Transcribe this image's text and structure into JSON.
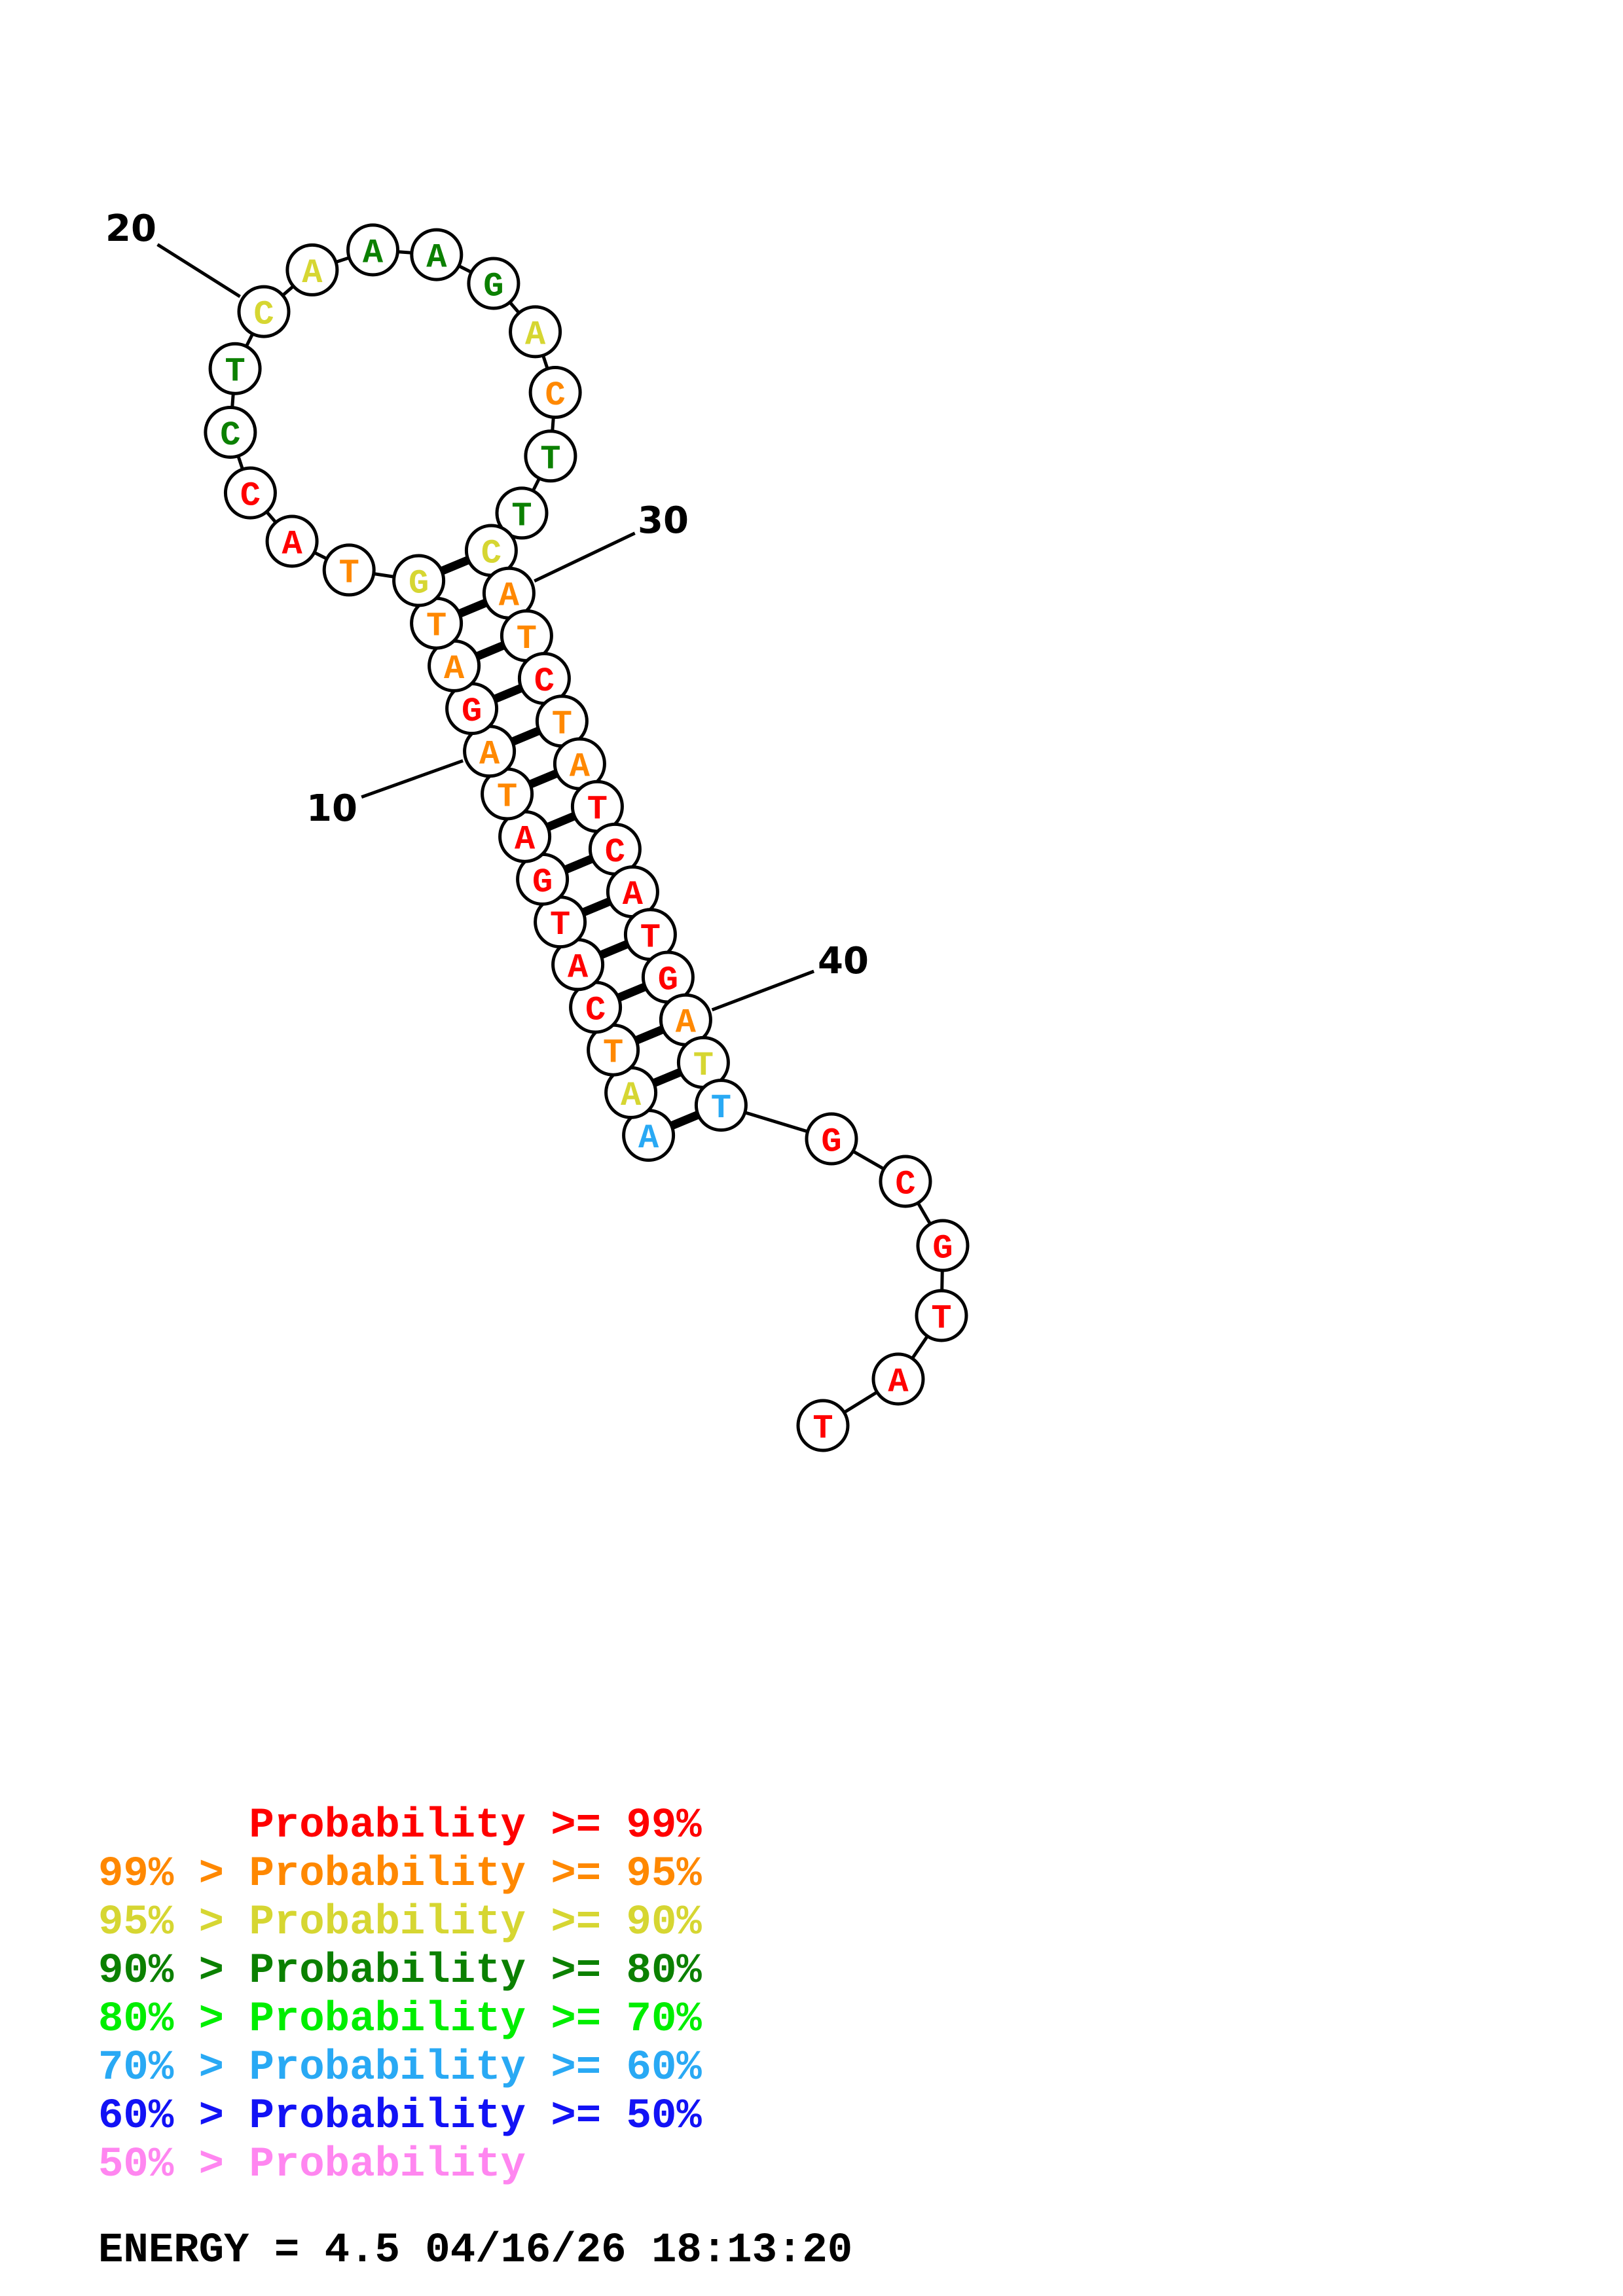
{
  "palette": {
    "red": "#ff0000",
    "orange": "#ff8800",
    "yellow": "#d6d632",
    "dark_green": "#0b8000",
    "bright_green": "#00ee00",
    "sky_blue": "#29a9f4",
    "blue": "#1212f5",
    "violet": "#ff86f0",
    "ink": "#000000"
  },
  "structure": {
    "sequence_string": "AATCATGATAGATGTACCTCAAAGACTTCATCTATCATGATTGCGTAT",
    "nucleotides": [
      {
        "i": 1,
        "base": "A",
        "prob": "sky_blue"
      },
      {
        "i": 2,
        "base": "A",
        "prob": "yellow"
      },
      {
        "i": 3,
        "base": "T",
        "prob": "orange"
      },
      {
        "i": 4,
        "base": "C",
        "prob": "red"
      },
      {
        "i": 5,
        "base": "A",
        "prob": "red"
      },
      {
        "i": 6,
        "base": "T",
        "prob": "red"
      },
      {
        "i": 7,
        "base": "G",
        "prob": "red"
      },
      {
        "i": 8,
        "base": "A",
        "prob": "red"
      },
      {
        "i": 9,
        "base": "T",
        "prob": "orange"
      },
      {
        "i": 10,
        "base": "A",
        "prob": "orange"
      },
      {
        "i": 11,
        "base": "G",
        "prob": "red"
      },
      {
        "i": 12,
        "base": "A",
        "prob": "orange"
      },
      {
        "i": 13,
        "base": "T",
        "prob": "orange"
      },
      {
        "i": 14,
        "base": "G",
        "prob": "yellow"
      },
      {
        "i": 15,
        "base": "T",
        "prob": "orange"
      },
      {
        "i": 16,
        "base": "A",
        "prob": "red"
      },
      {
        "i": 17,
        "base": "C",
        "prob": "red"
      },
      {
        "i": 18,
        "base": "C",
        "prob": "dark_green"
      },
      {
        "i": 19,
        "base": "T",
        "prob": "dark_green"
      },
      {
        "i": 20,
        "base": "C",
        "prob": "yellow"
      },
      {
        "i": 21,
        "base": "A",
        "prob": "yellow"
      },
      {
        "i": 22,
        "base": "A",
        "prob": "dark_green"
      },
      {
        "i": 23,
        "base": "A",
        "prob": "dark_green"
      },
      {
        "i": 24,
        "base": "G",
        "prob": "dark_green"
      },
      {
        "i": 25,
        "base": "A",
        "prob": "yellow"
      },
      {
        "i": 26,
        "base": "C",
        "prob": "orange"
      },
      {
        "i": 27,
        "base": "T",
        "prob": "dark_green"
      },
      {
        "i": 28,
        "base": "T",
        "prob": "dark_green"
      },
      {
        "i": 29,
        "base": "C",
        "prob": "yellow"
      },
      {
        "i": 30,
        "base": "A",
        "prob": "orange"
      },
      {
        "i": 31,
        "base": "T",
        "prob": "orange"
      },
      {
        "i": 32,
        "base": "C",
        "prob": "red"
      },
      {
        "i": 33,
        "base": "T",
        "prob": "orange"
      },
      {
        "i": 34,
        "base": "A",
        "prob": "orange"
      },
      {
        "i": 35,
        "base": "T",
        "prob": "red"
      },
      {
        "i": 36,
        "base": "C",
        "prob": "red"
      },
      {
        "i": 37,
        "base": "A",
        "prob": "red"
      },
      {
        "i": 38,
        "base": "T",
        "prob": "red"
      },
      {
        "i": 39,
        "base": "G",
        "prob": "red"
      },
      {
        "i": 40,
        "base": "A",
        "prob": "orange"
      },
      {
        "i": 41,
        "base": "T",
        "prob": "yellow"
      },
      {
        "i": 42,
        "base": "T",
        "prob": "sky_blue"
      },
      {
        "i": 43,
        "base": "G",
        "prob": "red"
      },
      {
        "i": 44,
        "base": "C",
        "prob": "red"
      },
      {
        "i": 45,
        "base": "G",
        "prob": "red"
      },
      {
        "i": 46,
        "base": "T",
        "prob": "red"
      },
      {
        "i": 47,
        "base": "A",
        "prob": "red"
      },
      {
        "i": 48,
        "base": "T",
        "prob": "red"
      }
    ],
    "pairs": [
      [
        1,
        42
      ],
      [
        2,
        41
      ],
      [
        3,
        40
      ],
      [
        4,
        39
      ],
      [
        5,
        38
      ],
      [
        6,
        37
      ],
      [
        7,
        36
      ],
      [
        8,
        35
      ],
      [
        9,
        34
      ],
      [
        10,
        33
      ],
      [
        11,
        32
      ],
      [
        12,
        31
      ],
      [
        13,
        30
      ],
      [
        14,
        29
      ]
    ],
    "position_labels": [
      {
        "text": "10",
        "nucleotide": 10
      },
      {
        "text": "20",
        "nucleotide": 20
      },
      {
        "text": "30",
        "nucleotide": 30
      },
      {
        "text": "40",
        "nucleotide": 40
      }
    ]
  },
  "legend": {
    "rows": [
      {
        "label": "Probability >= 99%",
        "color_key": "red",
        "indented": true
      },
      {
        "label": "99% > Probability >= 95%",
        "color_key": "orange",
        "indented": false
      },
      {
        "label": "95% > Probability >= 90%",
        "color_key": "yellow",
        "indented": false
      },
      {
        "label": "90% > Probability >= 80%",
        "color_key": "dark_green",
        "indented": false
      },
      {
        "label": "80% > Probability >= 70%",
        "color_key": "bright_green",
        "indented": false
      },
      {
        "label": "70% > Probability >= 60%",
        "color_key": "sky_blue",
        "indented": false
      },
      {
        "label": "60% > Probability >= 50%",
        "color_key": "blue",
        "indented": false
      },
      {
        "label": "50% > Probability",
        "color_key": "violet",
        "indented": false
      }
    ]
  },
  "footer": {
    "energy_line": "ENERGY = 4.5  04/16/26 18:13:20"
  }
}
